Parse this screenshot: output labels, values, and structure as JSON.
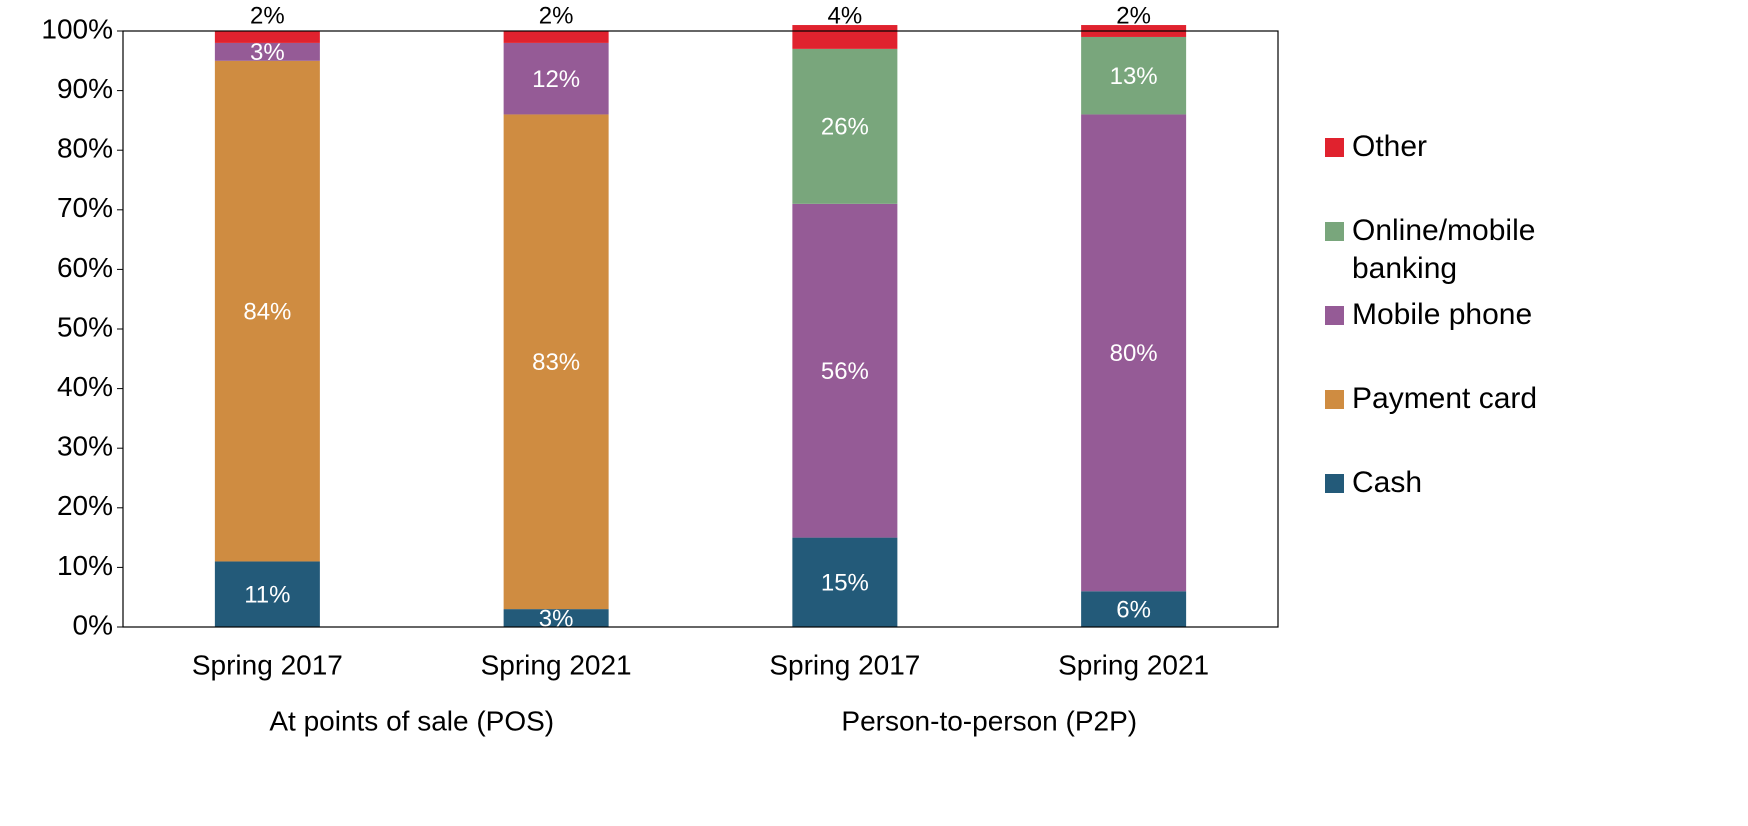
{
  "chart_data": {
    "type": "stacked_bar",
    "categories": [
      "Spring 2017",
      "Spring 2021",
      "Spring 2017",
      "Spring 2021"
    ],
    "groups": [
      "At points of sale (POS)",
      "Person-to-person (P2P)"
    ],
    "series": [
      {
        "name": "Cash",
        "color": "#235a79",
        "values": [
          11,
          3,
          15,
          6
        ],
        "value_labels": [
          "11%",
          "3%",
          "15%",
          "6%"
        ]
      },
      {
        "name": "Payment card",
        "color": "#cf8c41",
        "values": [
          84,
          83,
          0,
          0
        ],
        "value_labels": [
          "84%",
          "83%",
          null,
          null
        ]
      },
      {
        "name": "Mobile phone",
        "color": "#955b96",
        "values": [
          3,
          12,
          56,
          80
        ],
        "value_labels": [
          "3%",
          "12%",
          "56%",
          "80%"
        ]
      },
      {
        "name": "Online/mobile banking",
        "color": "#79a67c",
        "values": [
          0,
          0,
          26,
          13
        ],
        "value_labels": [
          null,
          null,
          "26%",
          "13%"
        ]
      },
      {
        "name": "Other",
        "color": "#e0222e",
        "values": [
          2,
          2,
          4,
          2
        ],
        "value_labels": [
          "2%",
          "2%",
          "4%",
          "2%"
        ]
      }
    ],
    "ylim": [
      0,
      100
    ],
    "yticks": [
      {
        "value": 0,
        "label": "0%"
      },
      {
        "value": 10,
        "label": "10%"
      },
      {
        "value": 20,
        "label": "20%"
      },
      {
        "value": 30,
        "label": "30%"
      },
      {
        "value": 40,
        "label": "40%"
      },
      {
        "value": 50,
        "label": "50%"
      },
      {
        "value": 60,
        "label": "60%"
      },
      {
        "value": 70,
        "label": "70%"
      },
      {
        "value": 80,
        "label": "80%"
      },
      {
        "value": 90,
        "label": "90%"
      },
      {
        "value": 100,
        "label": "100%"
      }
    ],
    "legend": "right"
  }
}
